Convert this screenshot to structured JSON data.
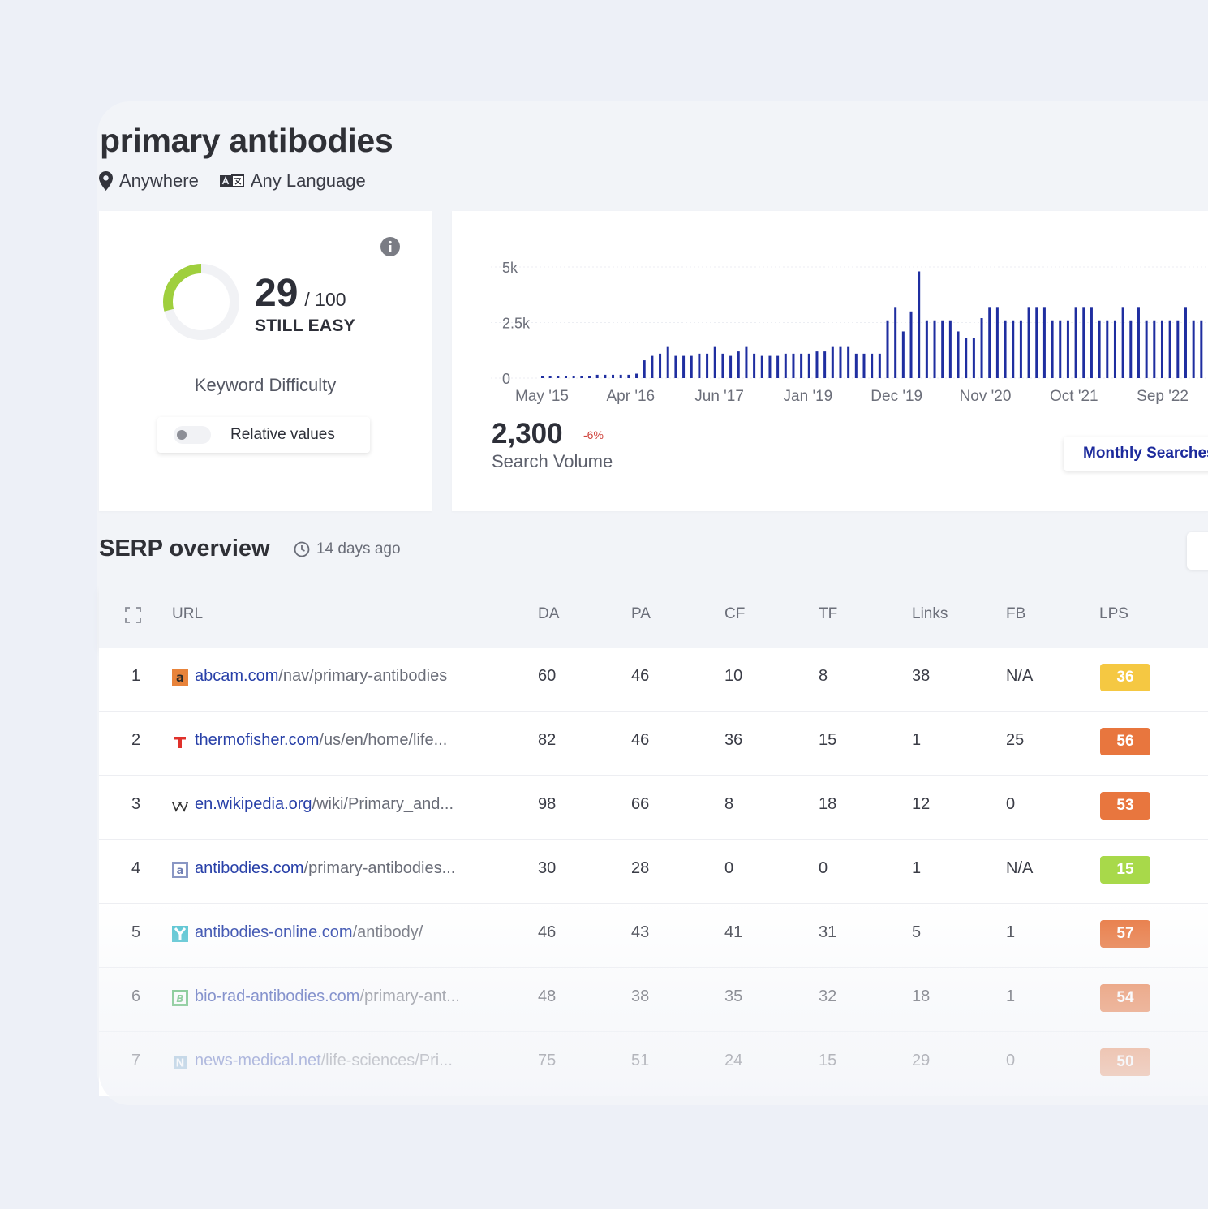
{
  "keyword": "primary antibodies",
  "location": "Anywhere",
  "language": "Any Language",
  "difficulty": {
    "score": "29",
    "max": "/ 100",
    "fraction": 0.29,
    "status": "STILL EASY",
    "label": "Keyword Difficulty",
    "toggle_label": "Relative values"
  },
  "search_volume": {
    "value": "2,300",
    "change": "-6%",
    "label": "Search Volume",
    "button_label": "Monthly Searches"
  },
  "chart_data": {
    "type": "bar",
    "y_ticks": [
      "5k",
      "2.5k",
      "0"
    ],
    "ylim": [
      0,
      5000
    ],
    "x_ticks": [
      "May '15",
      "Apr '16",
      "Jun '17",
      "Jan '19",
      "Dec '19",
      "Nov '20",
      "Oct '21",
      "Sep '22"
    ],
    "values": [
      100,
      100,
      100,
      100,
      100,
      100,
      100,
      150,
      150,
      150,
      150,
      150,
      200,
      800,
      1000,
      1100,
      1400,
      1000,
      1000,
      1000,
      1100,
      1100,
      1400,
      1100,
      1000,
      1200,
      1400,
      1100,
      1000,
      1000,
      1000,
      1100,
      1100,
      1100,
      1100,
      1200,
      1200,
      1400,
      1400,
      1400,
      1100,
      1100,
      1100,
      1100,
      2600,
      3200,
      2100,
      3000,
      4800,
      2600,
      2600,
      2600,
      2600,
      2100,
      1800,
      1800,
      2700,
      3200,
      3200,
      2600,
      2600,
      2600,
      3200,
      3200,
      3200,
      2600,
      2600,
      2600,
      3200,
      3200,
      3200,
      2600,
      2600,
      2600,
      3200,
      2600,
      3200,
      2600,
      2600,
      2600,
      2600,
      2600,
      3200,
      2600,
      2600
    ],
    "color": "#1f2ea0"
  },
  "serp": {
    "title": "SERP overview",
    "updated": "14 days ago",
    "columns": [
      "URL",
      "DA",
      "PA",
      "CF",
      "TF",
      "Links",
      "FB",
      "LPS"
    ],
    "rows": [
      {
        "rank": "1",
        "domain": "abcam.com",
        "path": "/nav/primary-antibodies",
        "da": "60",
        "pa": "46",
        "cf": "10",
        "tf": "8",
        "links": "38",
        "fb": "N/A",
        "lps": "36",
        "lps_color": "#f5c842",
        "icon": "abcam-favicon"
      },
      {
        "rank": "2",
        "domain": "thermofisher.com",
        "path": "/us/en/home/life...",
        "da": "82",
        "pa": "46",
        "cf": "36",
        "tf": "15",
        "links": "1",
        "fb": "25",
        "lps": "56",
        "lps_color": "#e8763e",
        "icon": "thermofisher-favicon"
      },
      {
        "rank": "3",
        "domain": "en.wikipedia.org",
        "path": "/wiki/Primary_and...",
        "da": "98",
        "pa": "66",
        "cf": "8",
        "tf": "18",
        "links": "12",
        "fb": "0",
        "lps": "53",
        "lps_color": "#e8763e",
        "icon": "wikipedia-favicon"
      },
      {
        "rank": "4",
        "domain": "antibodies.com",
        "path": "/primary-antibodies...",
        "da": "30",
        "pa": "28",
        "cf": "0",
        "tf": "0",
        "links": "1",
        "fb": "N/A",
        "lps": "15",
        "lps_color": "#a8d94a",
        "icon": "antibodies-favicon"
      },
      {
        "rank": "5",
        "domain": "antibodies-online.com",
        "path": "/antibody/",
        "da": "46",
        "pa": "43",
        "cf": "41",
        "tf": "31",
        "links": "5",
        "fb": "1",
        "lps": "57",
        "lps_color": "#e8763e",
        "icon": "antibodies-online-favicon"
      },
      {
        "rank": "6",
        "domain": "bio-rad-antibodies.com",
        "path": "/primary-ant...",
        "da": "48",
        "pa": "38",
        "cf": "35",
        "tf": "32",
        "links": "18",
        "fb": "1",
        "lps": "54",
        "lps_color": "#e8763e",
        "icon": "bio-rad-favicon"
      },
      {
        "rank": "7",
        "domain": "news-medical.net",
        "path": "/life-sciences/Pri...",
        "da": "75",
        "pa": "51",
        "cf": "24",
        "tf": "15",
        "links": "29",
        "fb": "0",
        "lps": "50",
        "lps_color": "#e8763e",
        "icon": "news-medical-favicon"
      }
    ]
  }
}
